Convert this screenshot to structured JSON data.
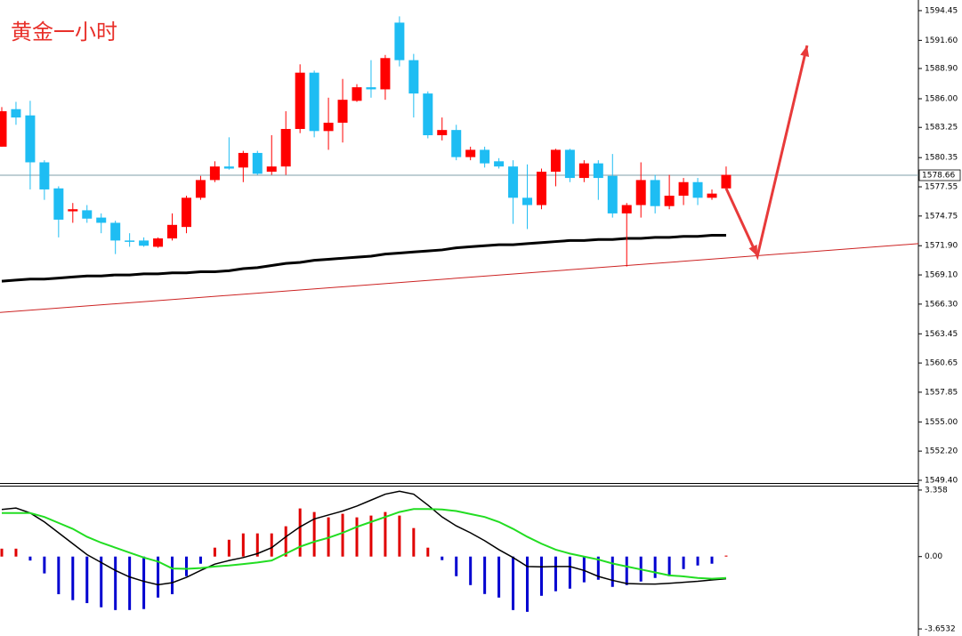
{
  "chart_data": [
    {
      "type": "candlestick",
      "title": "黄金一小时",
      "open": [
        1581.4,
        1585.0,
        1584.4,
        1579.9,
        1577.4,
        1575.2,
        1575.3,
        1574.6,
        1574.1,
        1572.4,
        1572.4,
        1571.8,
        1572.6,
        1573.7,
        1576.5,
        1578.2,
        1579.5,
        1579.4,
        1580.8,
        1579.0,
        1579.5,
        1583.1,
        1588.5,
        1582.9,
        1583.7,
        1585.8,
        1587.1,
        1586.9,
        1593.3,
        1589.7,
        1586.5,
        1582.5,
        1583.0,
        1580.4,
        1581.1,
        1580.0,
        1579.5,
        1576.5,
        1575.8,
        1579.0,
        1581.1,
        1578.4,
        1579.8,
        1578.6,
        1575.0,
        1575.8,
        1578.2,
        1575.7,
        1576.7,
        1578.0,
        1576.5,
        1577.4
      ],
      "high": [
        1585.2,
        1585.7,
        1585.8,
        1580.1,
        1577.6,
        1576.0,
        1575.8,
        1575.0,
        1574.3,
        1573.1,
        1572.7,
        1572.7,
        1575.0,
        1576.7,
        1578.6,
        1580.0,
        1582.3,
        1581.0,
        1581.0,
        1582.5,
        1584.8,
        1589.3,
        1588.7,
        1586.1,
        1587.9,
        1587.4,
        1589.7,
        1590.2,
        1593.9,
        1590.3,
        1586.7,
        1584.2,
        1583.5,
        1581.4,
        1581.4,
        1580.3,
        1580.1,
        1579.7,
        1579.3,
        1581.2,
        1581.2,
        1580.1,
        1580.1,
        1580.7,
        1576.0,
        1579.9,
        1578.7,
        1578.7,
        1578.4,
        1578.4,
        1577.3,
        1579.5
      ],
      "low": [
        1581.4,
        1583.5,
        1577.3,
        1576.3,
        1572.7,
        1574.1,
        1574.1,
        1573.1,
        1571.1,
        1571.8,
        1571.8,
        1571.7,
        1572.4,
        1573.1,
        1576.3,
        1578.0,
        1579.2,
        1578.0,
        1578.7,
        1578.7,
        1578.7,
        1582.7,
        1582.3,
        1581.1,
        1581.8,
        1585.7,
        1586.1,
        1585.9,
        1589.1,
        1584.2,
        1582.2,
        1582.0,
        1580.1,
        1580.1,
        1579.4,
        1579.3,
        1574.0,
        1573.5,
        1575.4,
        1577.6,
        1578.0,
        1578.0,
        1576.3,
        1574.6,
        1569.9,
        1574.6,
        1575.0,
        1575.4,
        1575.8,
        1575.8,
        1576.3,
        1577.2
      ],
      "close": [
        1584.8,
        1584.2,
        1579.9,
        1577.3,
        1574.4,
        1575.4,
        1574.5,
        1574.1,
        1572.4,
        1572.3,
        1571.9,
        1572.6,
        1573.9,
        1576.5,
        1578.2,
        1579.5,
        1579.3,
        1580.8,
        1578.8,
        1579.5,
        1583.1,
        1588.5,
        1582.9,
        1583.7,
        1585.9,
        1587.1,
        1586.9,
        1589.9,
        1589.7,
        1586.5,
        1582.5,
        1583.0,
        1580.4,
        1581.1,
        1579.8,
        1579.5,
        1576.5,
        1575.8,
        1579.0,
        1581.1,
        1578.4,
        1579.8,
        1578.4,
        1575.0,
        1575.8,
        1578.2,
        1575.7,
        1576.7,
        1578.0,
        1576.5,
        1576.9,
        1578.7
      ],
      "up_color": "#ff0000",
      "down_color": "#1ebdf3",
      "ma": {
        "color": "#000000",
        "values": [
          1568.5,
          1568.6,
          1568.7,
          1568.7,
          1568.8,
          1568.9,
          1569.0,
          1569.0,
          1569.1,
          1569.1,
          1569.2,
          1569.2,
          1569.3,
          1569.3,
          1569.4,
          1569.4,
          1569.5,
          1569.7,
          1569.8,
          1570.0,
          1570.2,
          1570.3,
          1570.5,
          1570.6,
          1570.7,
          1570.8,
          1570.9,
          1571.1,
          1571.2,
          1571.3,
          1571.4,
          1571.5,
          1571.7,
          1571.8,
          1571.9,
          1572.0,
          1572.0,
          1572.1,
          1572.2,
          1572.3,
          1572.4,
          1572.4,
          1572.5,
          1572.5,
          1572.6,
          1572.6,
          1572.7,
          1572.7,
          1572.8,
          1572.8,
          1572.9,
          1572.9
        ]
      },
      "trendline": {
        "color": "#cc2222",
        "values": [
          1565.5,
          1572.1
        ]
      },
      "forecast": {
        "color": "#e83a3a",
        "x": [
          51,
          53.2,
          56.7
        ],
        "values": [
          1577.4,
          1570.9,
          1591.1
        ]
      },
      "last_price": 1578.66,
      "ylim": [
        1549.14,
        1595.47
      ],
      "yticks": [
        1594.45,
        {
          "value": 1591.6,
          "label": "1591.60"
        },
        {
          "value": 1588.9,
          "label": "1588.90"
        },
        {
          "value": 1586,
          "label": "1586.00"
        },
        1583.25,
        1580.35,
        1577.55,
        1574.75,
        {
          "value": 1571.9,
          "label": "1571.90"
        },
        {
          "value": 1569.1,
          "label": "1569.10"
        },
        {
          "value": 1566.3,
          "label": "1566.30"
        },
        1563.45,
        1560.65,
        1557.85,
        {
          "value": 1555,
          "label": "1555.00"
        },
        {
          "value": 1552.2,
          "label": "1552.20"
        },
        {
          "value": 1549.4,
          "label": "1549.40"
        }
      ]
    },
    {
      "type": "macd",
      "histogram": {
        "up_color": "#e00000",
        "down_color": "#0000d0",
        "values": [
          0.4,
          0.4,
          -0.2,
          -0.85,
          -1.9,
          -2.2,
          -2.35,
          -2.56,
          -2.7,
          -2.7,
          -2.65,
          -2.07,
          -1.9,
          -0.99,
          -0.36,
          0.45,
          0.85,
          1.17,
          1.17,
          1.17,
          1.53,
          2.43,
          2.25,
          1.98,
          2.16,
          1.98,
          2.07,
          2.25,
          2.07,
          1.44,
          0.45,
          -0.18,
          -0.99,
          -1.44,
          -1.89,
          -2.07,
          -2.7,
          -2.79,
          -1.98,
          -1.75,
          -1.62,
          -1.3,
          -1.17,
          -1.53,
          -1.44,
          -1.26,
          -1.08,
          -0.99,
          -0.63,
          -0.45,
          -0.36,
          0.05
        ]
      },
      "lines": [
        {
          "color": "#000000",
          "values": [
            2.38,
            2.45,
            2.2,
            1.75,
            1.2,
            0.65,
            0.1,
            -0.3,
            -0.7,
            -1.03,
            -1.25,
            -1.42,
            -1.32,
            -1.05,
            -0.7,
            -0.38,
            -0.2,
            -0.05,
            0.15,
            0.45,
            1.0,
            1.5,
            1.9,
            2.1,
            2.3,
            2.55,
            2.85,
            3.15,
            3.3,
            3.15,
            2.6,
            2.0,
            1.55,
            1.2,
            0.8,
            0.35,
            -0.05,
            -0.5,
            -0.52,
            -0.5,
            -0.5,
            -0.7,
            -1.0,
            -1.2,
            -1.36,
            -1.38,
            -1.39,
            -1.35,
            -1.3,
            -1.25,
            -1.18,
            -1.12
          ]
        },
        {
          "color": "#22dd22",
          "values": [
            2.2,
            2.2,
            2.2,
            2.0,
            1.7,
            1.4,
            1.0,
            0.7,
            0.45,
            0.2,
            -0.05,
            -0.25,
            -0.6,
            -0.62,
            -0.58,
            -0.5,
            -0.45,
            -0.38,
            -0.3,
            -0.2,
            0.15,
            0.5,
            0.75,
            0.95,
            1.2,
            1.5,
            1.75,
            2.0,
            2.25,
            2.4,
            2.4,
            2.38,
            2.3,
            2.15,
            2.0,
            1.75,
            1.4,
            1.0,
            0.65,
            0.35,
            0.15,
            0.0,
            -0.15,
            -0.35,
            -0.5,
            -0.65,
            -0.8,
            -0.95,
            -1.0,
            -1.08,
            -1.12,
            -1.08
          ]
        }
      ],
      "ylim": [
        -4.01,
        3.58
      ],
      "yticks": [
        3.358,
        {
          "value": 0,
          "label": "0.00"
        },
        -3.6532
      ]
    }
  ]
}
